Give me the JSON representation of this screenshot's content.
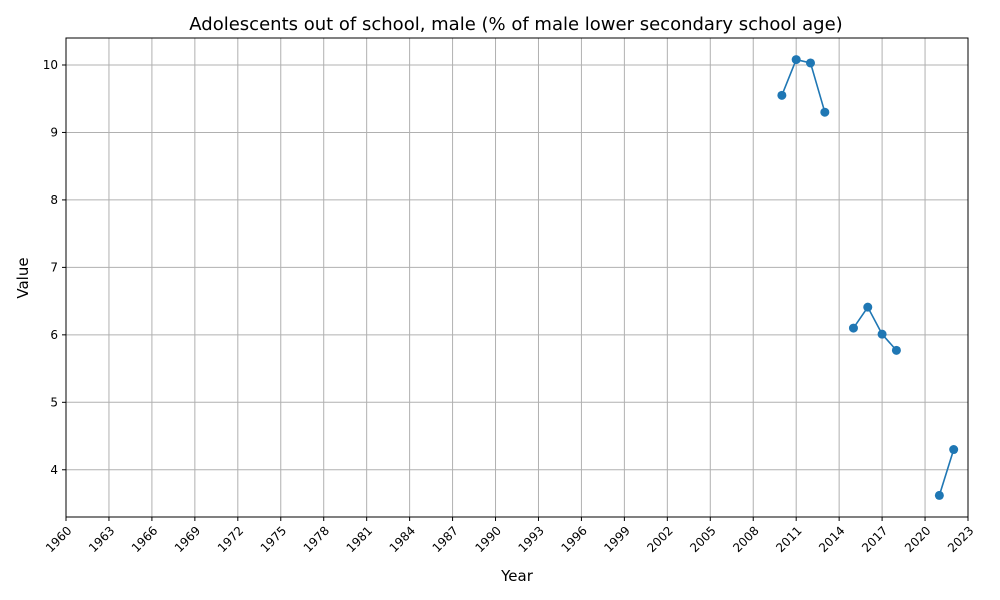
{
  "chart_data": {
    "type": "line",
    "title": "Adolescents out of school, male (% of male lower secondary school age)",
    "xlabel": "Year",
    "ylabel": "Value",
    "xlim": [
      1960,
      2023
    ],
    "ylim": [
      3.3,
      10.4
    ],
    "x_ticks": [
      1960,
      1963,
      1966,
      1969,
      1972,
      1975,
      1978,
      1981,
      1984,
      1987,
      1990,
      1993,
      1996,
      1999,
      2002,
      2005,
      2008,
      2011,
      2014,
      2017,
      2020,
      2023
    ],
    "y_ticks": [
      4,
      5,
      6,
      7,
      8,
      9,
      10
    ],
    "grid": true,
    "series": [
      {
        "color": "#1f77b4",
        "marker": "circle",
        "x": [
          2010,
          2011,
          2012,
          2013,
          2014,
          2015,
          2016,
          2017,
          2018,
          2019,
          2020,
          2021,
          2022
        ],
        "y": [
          9.55,
          10.08,
          10.03,
          9.3,
          null,
          6.1,
          6.41,
          6.01,
          5.77,
          null,
          null,
          3.62,
          4.3
        ]
      }
    ]
  }
}
